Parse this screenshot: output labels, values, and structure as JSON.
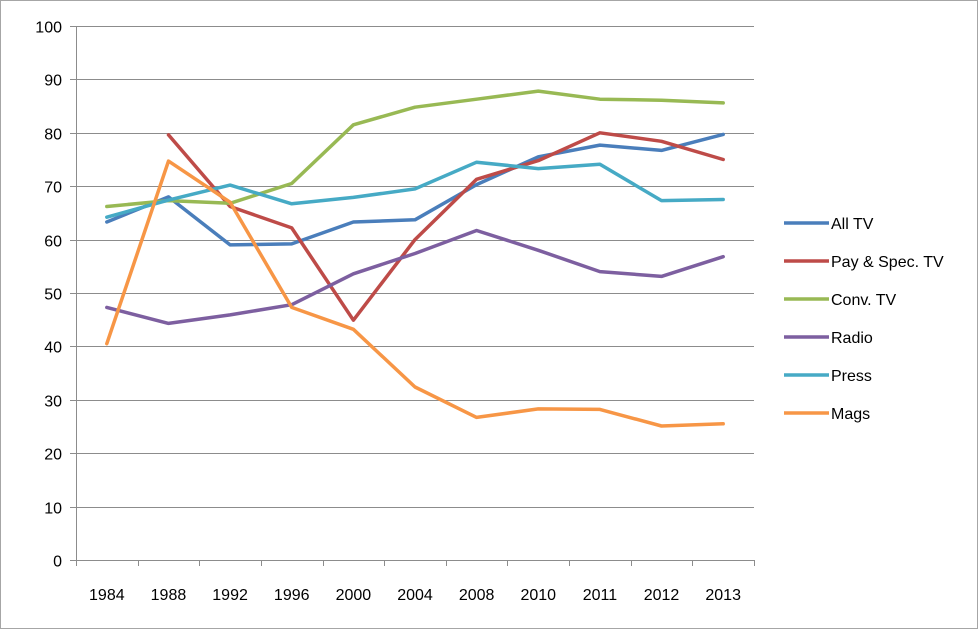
{
  "chart_data": {
    "type": "line",
    "categories": [
      "1984",
      "1988",
      "1992",
      "1996",
      "2000",
      "2004",
      "2008",
      "2010",
      "2011",
      "2012",
      "2013"
    ],
    "ylim": [
      0,
      100
    ],
    "yticks": [
      0,
      10,
      20,
      30,
      40,
      50,
      60,
      70,
      80,
      90,
      100
    ],
    "grid": true,
    "legend_position": "right",
    "series": [
      {
        "name": "All TV",
        "color": "#4a7ebb",
        "values": [
          63.3,
          68.0,
          59.0,
          59.2,
          63.3,
          63.7,
          70.3,
          75.5,
          77.7,
          76.7,
          79.7
        ]
      },
      {
        "name": "Pay & Spec. TV",
        "color": "#be4b48",
        "values": [
          null,
          79.6,
          66.2,
          62.2,
          44.9,
          60.0,
          71.3,
          74.8,
          80.0,
          78.4,
          75.0
        ]
      },
      {
        "name": "Conv. TV",
        "color": "#98b954",
        "values": [
          66.2,
          67.3,
          66.8,
          70.5,
          81.5,
          84.8,
          86.3,
          87.8,
          86.3,
          86.1,
          85.6
        ]
      },
      {
        "name": "Radio",
        "color": "#7d5fa0",
        "values": [
          47.3,
          44.3,
          45.9,
          47.8,
          53.6,
          57.4,
          61.7,
          58.0,
          54.0,
          53.1,
          56.8
        ]
      },
      {
        "name": "Press",
        "color": "#46aac5",
        "values": [
          64.2,
          67.4,
          70.2,
          66.7,
          67.9,
          69.5,
          74.5,
          73.3,
          74.1,
          67.3,
          67.5
        ]
      },
      {
        "name": "Mags",
        "color": "#f79646",
        "values": [
          40.5,
          74.7,
          67.0,
          47.3,
          43.2,
          32.4,
          26.7,
          28.3,
          28.2,
          25.1,
          25.5
        ]
      }
    ]
  }
}
